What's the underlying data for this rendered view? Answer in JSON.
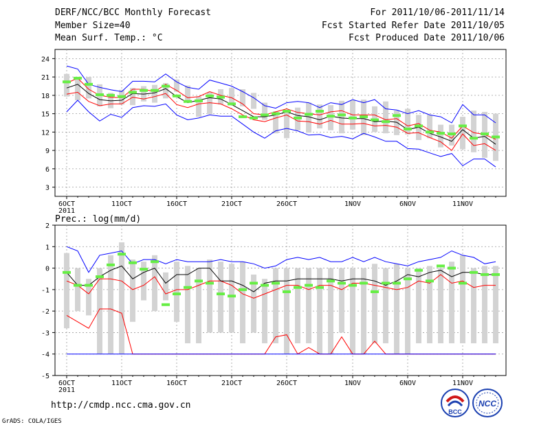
{
  "header": {
    "title": "DERF/NCC/BCC Monthly Forecast",
    "member_size": "Member Size=40",
    "variable": "Mean Surf. Temp.: °C",
    "forecast_period": "For 2011/10/06-2011/11/14",
    "start_date": "Fcst Started Refer Date 2011/10/05",
    "produced_date": "Fcst Produced Date 2011/10/06"
  },
  "footer": {
    "url": "http://cmdp.ncc.cma.gov.cn",
    "credit": "GrADS: COLA/IGES",
    "logo1_text": "BCC",
    "logo2_text": "NCC"
  },
  "colors": {
    "mean_line": "#000000",
    "spread_line": "#ff0000",
    "extreme_line": "#0000ff",
    "box": "#d3d3d3",
    "observed": "#66ee44",
    "grid": "#999999"
  },
  "chart_data": [
    {
      "type": "line",
      "title": "Mean Surf. Temp.: °C",
      "xlabel": "",
      "ylabel": "°C",
      "ylim": [
        1.5,
        25.5
      ],
      "yticks": [
        "3",
        "6",
        "9",
        "12",
        "15",
        "18",
        "21",
        "24"
      ],
      "ytick_values": [
        3,
        6,
        9,
        12,
        15,
        18,
        21,
        24
      ],
      "xticks": [
        "6OCT",
        "11OCT",
        "16OCT",
        "21OCT",
        "26OCT",
        "1NOV",
        "6NOV",
        "11NOV"
      ],
      "xtick_days": [
        1,
        6,
        11,
        16,
        21,
        27,
        32,
        37
      ],
      "year_label": "2011",
      "n_days": 40,
      "box_low": [
        17.8,
        17.2,
        17.5,
        16.2,
        15.9,
        16.5,
        16.4,
        17.0,
        16.8,
        17.5,
        18.6,
        16.8,
        14.5,
        14.9,
        16.5,
        16.8,
        16.2,
        15.8,
        14.0,
        11.8,
        11.0,
        12.3,
        11.9,
        12.6,
        12.3,
        11.8,
        12.4,
        11.5,
        12.0,
        11.8,
        11.5,
        11.6,
        10.7,
        11.0,
        9.5,
        9.8,
        9.2,
        8.7,
        7.8,
        7.3
      ],
      "box_high": [
        21.5,
        21.0,
        21.0,
        19.8,
        18.4,
        18.9,
        19.2,
        19.5,
        19.7,
        20.0,
        20.6,
        19.6,
        17.8,
        18.5,
        19.0,
        19.2,
        19.0,
        18.4,
        16.8,
        15.4,
        15.2,
        16.0,
        16.8,
        16.5,
        16.4,
        17.1,
        17.2,
        17.3,
        16.2,
        17.0,
        15.5,
        15.8,
        14.8,
        14.8,
        13.2,
        13.2,
        14.5,
        15.5,
        15.3,
        15.0
      ],
      "series": [
        {
          "name": "upper-extreme",
          "color": "#0000ff",
          "values": [
            22.8,
            22.3,
            19.8,
            19.3,
            18.9,
            18.6,
            20.3,
            20.3,
            20.2,
            21.5,
            20.2,
            19.3,
            19.0,
            20.5,
            20.0,
            19.5,
            18.6,
            17.6,
            16.3,
            15.9,
            16.8,
            17.0,
            16.8,
            16.0,
            16.8,
            16.5,
            17.3,
            16.8,
            17.3,
            15.8,
            15.6,
            15.0,
            15.5,
            14.8,
            14.5,
            13.5,
            16.5,
            14.8,
            14.8,
            13.5
          ]
        },
        {
          "name": "upper-spread",
          "color": "#ff0000",
          "values": [
            20.0,
            20.8,
            19.0,
            18.0,
            17.7,
            17.6,
            19.0,
            19.0,
            18.6,
            19.8,
            18.8,
            17.6,
            17.8,
            18.6,
            18.0,
            17.6,
            16.6,
            15.0,
            14.8,
            15.3,
            15.8,
            15.2,
            15.0,
            14.8,
            15.3,
            15.5,
            14.8,
            14.8,
            14.8,
            14.0,
            14.2,
            13.0,
            13.4,
            12.3,
            12.0,
            11.0,
            13.0,
            11.9,
            11.6,
            10.8
          ]
        },
        {
          "name": "ensemble-mean",
          "color": "#000000",
          "values": [
            19.2,
            19.8,
            18.3,
            17.3,
            17.1,
            17.2,
            18.3,
            18.2,
            18.4,
            19.1,
            17.8,
            16.8,
            17.2,
            17.6,
            17.4,
            16.5,
            15.5,
            14.5,
            14.5,
            14.8,
            15.3,
            14.7,
            14.5,
            14.0,
            14.6,
            14.3,
            14.2,
            14.2,
            13.7,
            13.8,
            13.6,
            12.4,
            12.8,
            11.8,
            11.2,
            10.5,
            12.4,
            11.0,
            11.3,
            10.0
          ]
        },
        {
          "name": "lower-spread",
          "color": "#ff0000",
          "values": [
            18.2,
            18.5,
            17.0,
            16.3,
            16.6,
            16.6,
            17.7,
            17.4,
            17.8,
            18.3,
            16.5,
            16.0,
            16.6,
            16.8,
            16.6,
            15.8,
            14.8,
            14.0,
            13.7,
            14.3,
            14.8,
            13.8,
            13.7,
            13.3,
            13.9,
            13.3,
            13.3,
            13.4,
            13.0,
            13.1,
            12.8,
            11.8,
            11.9,
            11.1,
            10.4,
            9.0,
            11.7,
            9.8,
            10.1,
            9.0
          ]
        },
        {
          "name": "lower-extreme",
          "color": "#0000ff",
          "values": [
            15.3,
            17.2,
            15.3,
            13.8,
            14.9,
            14.4,
            16.0,
            16.3,
            16.2,
            16.6,
            14.8,
            14.0,
            14.3,
            14.8,
            14.6,
            14.6,
            13.3,
            12.0,
            11.0,
            12.2,
            12.6,
            12.2,
            11.5,
            11.6,
            11.1,
            11.3,
            10.9,
            11.8,
            11.2,
            10.5,
            10.5,
            9.3,
            9.2,
            8.6,
            8.0,
            8.5,
            6.5,
            7.6,
            7.6,
            6.3
          ]
        }
      ],
      "observed": [
        20.2,
        20.8,
        19.8,
        18.1,
        18.0,
        17.8,
        18.5,
        18.8,
        18.8,
        19.5,
        17.9,
        17.0,
        17.1,
        17.9,
        17.7,
        16.6,
        14.5,
        14.3,
        14.8,
        15.0,
        15.4,
        14.3,
        14.9,
        15.4,
        14.6,
        14.8,
        14.3,
        14.5,
        14.0,
        13.7,
        14.7,
        12.5,
        13.0,
        12.0,
        11.8,
        11.7,
        13.0,
        11.0,
        11.7,
        11.2
      ]
    },
    {
      "type": "line",
      "title": "Prec.: log(mm/d)",
      "xlabel": "",
      "ylabel": "log(mm/d)",
      "ylim": [
        -5,
        2
      ],
      "yticks": [
        "-5",
        "-4",
        "-3",
        "-2",
        "-1",
        "0",
        "1",
        "2"
      ],
      "ytick_values": [
        -5,
        -4,
        -3,
        -2,
        -1,
        0,
        1,
        2
      ],
      "xticks": [
        "6OCT",
        "11OCT",
        "16OCT",
        "21OCT",
        "26OCT",
        "1NOV",
        "6NOV",
        "11NOV"
      ],
      "xtick_days": [
        1,
        6,
        11,
        16,
        21,
        27,
        32,
        37
      ],
      "year_label": "2011",
      "n_days": 40,
      "box_low": [
        -2.8,
        -2.0,
        -2.2,
        -4.0,
        -4.0,
        -4.0,
        -2.5,
        -1.5,
        -2.0,
        -1.5,
        -2.5,
        -3.5,
        -3.5,
        -3.0,
        -3.0,
        -3.0,
        -3.5,
        -3.0,
        -3.5,
        -3.5,
        -4.0,
        -3.5,
        -3.5,
        -4.0,
        -4.0,
        -3.0,
        -4.0,
        -4.0,
        -3.5,
        -3.5,
        -4.0,
        -4.0,
        -3.5,
        -3.5,
        -3.5,
        -3.5,
        -3.5,
        -3.5,
        -3.5,
        -3.5
      ],
      "box_high": [
        0.7,
        0.0,
        -0.5,
        0.0,
        0.6,
        1.2,
        0.4,
        0.3,
        0.6,
        -0.2,
        0.3,
        0.1,
        0.0,
        0.4,
        0.3,
        0.2,
        0.3,
        -0.3,
        -0.5,
        0.0,
        0.0,
        0.0,
        0.0,
        0.0,
        0.0,
        0.0,
        0.0,
        0.0,
        0.2,
        0.0,
        0.2,
        0.0,
        0.0,
        0.1,
        0.0,
        0.3,
        0.6,
        0.0,
        0.1,
        0.1
      ],
      "series": [
        {
          "name": "upper-extreme",
          "color": "#0000ff",
          "values": [
            1.0,
            0.8,
            -0.2,
            0.6,
            0.7,
            0.8,
            0.2,
            0.4,
            0.4,
            0.2,
            0.4,
            0.3,
            0.3,
            0.3,
            0.4,
            0.3,
            0.3,
            0.2,
            0.0,
            0.1,
            0.4,
            0.5,
            0.4,
            0.5,
            0.3,
            0.3,
            0.5,
            0.3,
            0.5,
            0.3,
            0.2,
            0.1,
            0.3,
            0.4,
            0.5,
            0.8,
            0.6,
            0.5,
            0.2,
            0.3
          ]
        },
        {
          "name": "upper-spread",
          "color": "#ff0000",
          "values": [
            -0.6,
            -0.8,
            -1.2,
            -0.5,
            -0.5,
            -0.6,
            -1.0,
            -0.8,
            -0.4,
            -1.2,
            -1.0,
            -1.0,
            -0.8,
            -0.6,
            -0.6,
            -0.8,
            -1.2,
            -1.4,
            -1.2,
            -1.0,
            -0.8,
            -0.8,
            -1.0,
            -0.8,
            -0.8,
            -1.0,
            -0.7,
            -0.7,
            -0.8,
            -0.9,
            -1.0,
            -0.9,
            -0.6,
            -0.7,
            -0.3,
            -0.7,
            -0.6,
            -0.9,
            -0.8,
            -0.8
          ]
        },
        {
          "name": "ensemble-mean",
          "color": "#000000",
          "values": [
            -0.2,
            -0.8,
            -0.8,
            -0.4,
            -0.1,
            0.1,
            -0.5,
            -0.2,
            0.0,
            -0.7,
            -0.3,
            -0.3,
            0.0,
            0.0,
            -0.6,
            -0.6,
            -0.8,
            -1.1,
            -0.7,
            -0.6,
            -0.6,
            -0.5,
            -0.5,
            -0.5,
            -0.5,
            -0.6,
            -0.5,
            -0.5,
            -0.6,
            -0.8,
            -0.6,
            -0.3,
            -0.4,
            -0.2,
            -0.1,
            -0.4,
            -0.2,
            -0.2,
            -0.3,
            -0.3
          ]
        },
        {
          "name": "lower-spread",
          "color": "#ff0000",
          "values": [
            -2.2,
            -2.5,
            -2.8,
            -1.9,
            -1.9,
            -2.1,
            -4.0,
            -4.0,
            -4.0,
            -4.0,
            -4.0,
            -4.0,
            -4.0,
            -4.0,
            -4.0,
            -4.0,
            -4.0,
            -4.0,
            -4.0,
            -3.2,
            -3.1,
            -4.0,
            -3.7,
            -4.0,
            -4.0,
            -3.2,
            -4.0,
            -4.0,
            -3.4,
            -4.0,
            -4.0,
            -4.0,
            -4.0,
            -4.0,
            -4.0,
            -4.0,
            -4.0,
            -4.0,
            -4.0,
            -4.0
          ]
        },
        {
          "name": "lower-extreme",
          "color": "#0000ff",
          "values": [
            -4.0,
            -4.0,
            -4.0,
            -4.0,
            -4.0,
            -4.0,
            -4.0,
            -4.0,
            -4.0,
            -4.0,
            -4.0,
            -4.0,
            -4.0,
            -4.0,
            -4.0,
            -4.0,
            -4.0,
            -4.0,
            -4.0,
            -4.0,
            -4.0,
            -4.0,
            -4.0,
            -4.0,
            -4.0,
            -4.0,
            -4.0,
            -4.0,
            -4.0,
            -4.0,
            -4.0,
            -4.0,
            -4.0,
            -4.0,
            -4.0,
            -4.0,
            -4.0,
            -4.0,
            -4.0,
            -4.0
          ]
        }
      ],
      "observed": [
        -0.2,
        -0.8,
        -0.8,
        -0.4,
        0.15,
        0.65,
        0.25,
        -0.05,
        0.3,
        -1.7,
        -1.2,
        -0.9,
        -0.6,
        -0.7,
        -1.2,
        -1.3,
        -1.0,
        -0.7,
        -0.8,
        -0.7,
        -1.1,
        -0.9,
        -0.8,
        -0.9,
        -0.6,
        -0.7,
        -0.8,
        -0.7,
        -1.1,
        -0.7,
        -0.7,
        -0.5,
        -0.1,
        -0.6,
        0.1,
        0.0,
        -0.7,
        -0.2,
        -0.3,
        -0.3
      ]
    }
  ]
}
